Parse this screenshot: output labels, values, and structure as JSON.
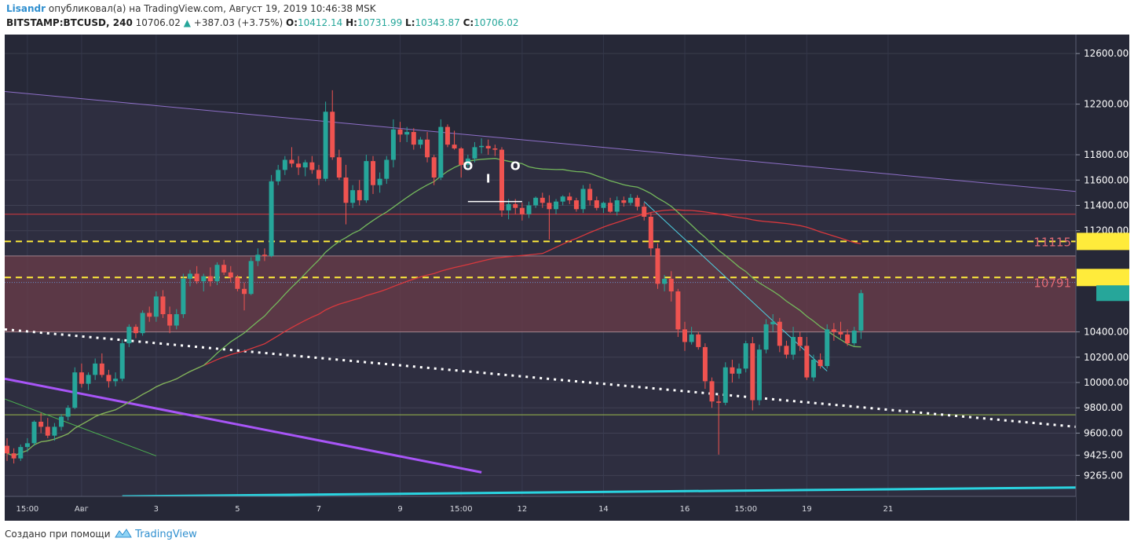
{
  "header": {
    "author": "Lisandr",
    "published": "опубликовал(а) на TradingView.com, Август 19, 2019 10:46:38 MSK",
    "symbol": "BITSTAMP:BTCUSD, 240",
    "last": "10706.02",
    "change": "+387.03 (+3.75%)",
    "o_label": "O:",
    "o_value": "10412.14",
    "h_label": "H:",
    "h_value": "10731.99",
    "l_label": "L:",
    "l_value": "10343.87",
    "c_label": "C:",
    "c_value": "10706.02"
  },
  "footer": {
    "created_with": "Создано при помощи",
    "brand": "TradingView"
  },
  "colors": {
    "background": "#262837",
    "up": "#26a69a",
    "down": "#ef5350",
    "zone": "#6b3c48",
    "purple_line": "#a855f7",
    "cyan_line": "#2ad4e0",
    "ma_green": "#74b85c",
    "ma_red": "#d9383d",
    "yellow": "#ffeb3b"
  },
  "chart_data": {
    "type": "candlestick",
    "symbol": "BITSTAMP:BTCUSD",
    "interval": "240",
    "ylim": [
      9100,
      12750
    ],
    "y_ticks": [
      12600,
      12200,
      11800,
      11600,
      11400,
      11200,
      10400,
      10200,
      10000,
      9800,
      9600,
      9425,
      9265
    ],
    "y_tick_labels": [
      "12600.00",
      "12200.00",
      "11800.00",
      "11600.00",
      "11400.00",
      "11200.00",
      "10400.00",
      "10200.00",
      "10000.00",
      "9800.00",
      "9600.00",
      "9425.00",
      "9265.00"
    ],
    "x_labels": [
      {
        "label": "15:00",
        "at": 3
      },
      {
        "label": "Авг",
        "at": 11
      },
      {
        "label": "3",
        "at": 22
      },
      {
        "label": "5",
        "at": 34
      },
      {
        "label": "7",
        "at": 46
      },
      {
        "label": "9",
        "at": 58
      },
      {
        "label": "15:00",
        "at": 67
      },
      {
        "label": "12",
        "at": 76
      },
      {
        "label": "14",
        "at": 88
      },
      {
        "label": "16",
        "at": 100
      },
      {
        "label": "15:00",
        "at": 109
      },
      {
        "label": "19",
        "at": 118
      },
      {
        "label": "21",
        "at": 130
      }
    ],
    "price_labels": [
      {
        "text": "11115",
        "value": 11115
      },
      {
        "text": "10791",
        "value": 10791
      }
    ],
    "candles": [
      [
        9500,
        9560,
        9380,
        9440
      ],
      [
        9440,
        9480,
        9360,
        9400
      ],
      [
        9400,
        9510,
        9380,
        9490
      ],
      [
        9490,
        9560,
        9450,
        9520
      ],
      [
        9520,
        9700,
        9500,
        9690
      ],
      [
        9690,
        9760,
        9600,
        9650
      ],
      [
        9650,
        9720,
        9560,
        9580
      ],
      [
        9580,
        9680,
        9540,
        9650
      ],
      [
        9650,
        9750,
        9620,
        9730
      ],
      [
        9730,
        9820,
        9700,
        9800
      ],
      [
        9800,
        10120,
        9790,
        10080
      ],
      [
        10080,
        10150,
        9960,
        9990
      ],
      [
        9990,
        10080,
        9940,
        10060
      ],
      [
        10060,
        10190,
        10020,
        10150
      ],
      [
        10150,
        10230,
        10040,
        10060
      ],
      [
        10060,
        10100,
        9960,
        10010
      ],
      [
        10010,
        10080,
        9970,
        10030
      ],
      [
        10030,
        10340,
        10010,
        10310
      ],
      [
        10310,
        10460,
        10280,
        10440
      ],
      [
        10440,
        10460,
        10350,
        10390
      ],
      [
        10390,
        10570,
        10370,
        10550
      ],
      [
        10550,
        10600,
        10480,
        10520
      ],
      [
        10520,
        10720,
        10480,
        10680
      ],
      [
        10680,
        10730,
        10510,
        10540
      ],
      [
        10540,
        10600,
        10390,
        10450
      ],
      [
        10450,
        10580,
        10420,
        10540
      ],
      [
        10540,
        10860,
        10510,
        10820
      ],
      [
        10820,
        10890,
        10760,
        10860
      ],
      [
        10860,
        10920,
        10780,
        10800
      ],
      [
        10800,
        10860,
        10720,
        10840
      ],
      [
        10840,
        10910,
        10760,
        10800
      ],
      [
        10800,
        10950,
        10770,
        10930
      ],
      [
        10930,
        10970,
        10850,
        10870
      ],
      [
        10870,
        10920,
        10790,
        10830
      ],
      [
        10830,
        10850,
        10720,
        10740
      ],
      [
        10740,
        10790,
        10570,
        10700
      ],
      [
        10700,
        10990,
        10690,
        10960
      ],
      [
        10960,
        11060,
        10920,
        11010
      ],
      [
        11010,
        11060,
        10960,
        11000
      ],
      [
        11000,
        11640,
        10990,
        11590
      ],
      [
        11590,
        11720,
        11560,
        11680
      ],
      [
        11680,
        11790,
        11640,
        11760
      ],
      [
        11760,
        11860,
        11700,
        11730
      ],
      [
        11730,
        11790,
        11640,
        11700
      ],
      [
        11700,
        11760,
        11630,
        11740
      ],
      [
        11740,
        11790,
        11650,
        11680
      ],
      [
        11680,
        11720,
        11560,
        11610
      ],
      [
        11610,
        12220,
        11590,
        12140
      ],
      [
        12140,
        12310,
        11760,
        11780
      ],
      [
        11780,
        11840,
        11600,
        11620
      ],
      [
        11620,
        11720,
        11250,
        11420
      ],
      [
        11420,
        11560,
        11380,
        11520
      ],
      [
        11520,
        11600,
        11400,
        11440
      ],
      [
        11440,
        11800,
        11420,
        11750
      ],
      [
        11750,
        11790,
        11490,
        11560
      ],
      [
        11560,
        11660,
        11500,
        11610
      ],
      [
        11610,
        11790,
        11570,
        11760
      ],
      [
        11760,
        12080,
        11700,
        12000
      ],
      [
        12000,
        12060,
        11900,
        11960
      ],
      [
        11960,
        12020,
        11900,
        11980
      ],
      [
        11980,
        12010,
        11840,
        11880
      ],
      [
        11880,
        11940,
        11850,
        11920
      ],
      [
        11920,
        11980,
        11740,
        11780
      ],
      [
        11780,
        11800,
        11560,
        11620
      ],
      [
        11620,
        12080,
        11600,
        12020
      ],
      [
        12020,
        12040,
        11860,
        11880
      ],
      [
        11880,
        11990,
        11840,
        11850
      ],
      [
        11850,
        11860,
        11620,
        11720
      ],
      [
        11720,
        11800,
        11680,
        11770
      ],
      [
        11770,
        11900,
        11740,
        11860
      ],
      [
        11860,
        11930,
        11810,
        11870
      ],
      [
        11870,
        11920,
        11800,
        11850
      ],
      [
        11850,
        11880,
        11790,
        11840
      ],
      [
        11840,
        11860,
        11310,
        11360
      ],
      [
        11360,
        11450,
        11290,
        11410
      ],
      [
        11410,
        11450,
        11330,
        11380
      ],
      [
        11380,
        11420,
        11280,
        11330
      ],
      [
        11330,
        11430,
        11300,
        11400
      ],
      [
        11400,
        11470,
        11380,
        11460
      ],
      [
        11460,
        11500,
        11380,
        11420
      ],
      [
        11420,
        11480,
        11130,
        11370
      ],
      [
        11370,
        11450,
        11330,
        11430
      ],
      [
        11430,
        11480,
        11400,
        11470
      ],
      [
        11470,
        11500,
        11410,
        11440
      ],
      [
        11440,
        11460,
        11350,
        11370
      ],
      [
        11370,
        11560,
        11340,
        11530
      ],
      [
        11530,
        11570,
        11400,
        11440
      ],
      [
        11440,
        11470,
        11360,
        11380
      ],
      [
        11380,
        11430,
        11340,
        11420
      ],
      [
        11420,
        11460,
        11340,
        11350
      ],
      [
        11350,
        11470,
        11320,
        11440
      ],
      [
        11440,
        11470,
        11390,
        11420
      ],
      [
        11420,
        11490,
        11400,
        11460
      ],
      [
        11460,
        11480,
        11360,
        11390
      ],
      [
        11390,
        11420,
        11280,
        11310
      ],
      [
        11310,
        11340,
        11000,
        11060
      ],
      [
        11060,
        11100,
        10740,
        10780
      ],
      [
        10780,
        10850,
        10720,
        10820
      ],
      [
        10820,
        10880,
        10640,
        10720
      ],
      [
        10720,
        10740,
        10360,
        10420
      ],
      [
        10420,
        10480,
        10250,
        10320
      ],
      [
        10320,
        10440,
        10300,
        10380
      ],
      [
        10380,
        10400,
        10260,
        10280
      ],
      [
        10280,
        10310,
        9950,
        10010
      ],
      [
        10010,
        10040,
        9800,
        9850
      ],
      [
        9850,
        9900,
        9430,
        9840
      ],
      [
        9840,
        10160,
        9820,
        10120
      ],
      [
        10120,
        10180,
        10000,
        10070
      ],
      [
        10070,
        10150,
        10030,
        10110
      ],
      [
        10110,
        10330,
        10080,
        10310
      ],
      [
        10310,
        10360,
        9780,
        9860
      ],
      [
        9860,
        10300,
        9820,
        10260
      ],
      [
        10260,
        10500,
        10230,
        10460
      ],
      [
        10460,
        10540,
        10400,
        10480
      ],
      [
        10480,
        10510,
        10240,
        10290
      ],
      [
        10290,
        10330,
        10190,
        10220
      ],
      [
        10220,
        10440,
        10180,
        10360
      ],
      [
        10360,
        10400,
        10250,
        10290
      ],
      [
        10290,
        10360,
        10020,
        10040
      ],
      [
        10040,
        10220,
        10010,
        10180
      ],
      [
        10180,
        10230,
        10110,
        10130
      ],
      [
        10130,
        10460,
        10110,
        10420
      ],
      [
        10420,
        10470,
        10330,
        10400
      ],
      [
        10400,
        10480,
        10350,
        10380
      ],
      [
        10380,
        10420,
        10290,
        10310
      ],
      [
        10310,
        10440,
        10290,
        10410
      ],
      [
        10410,
        10732,
        10344,
        10706
      ]
    ]
  }
}
